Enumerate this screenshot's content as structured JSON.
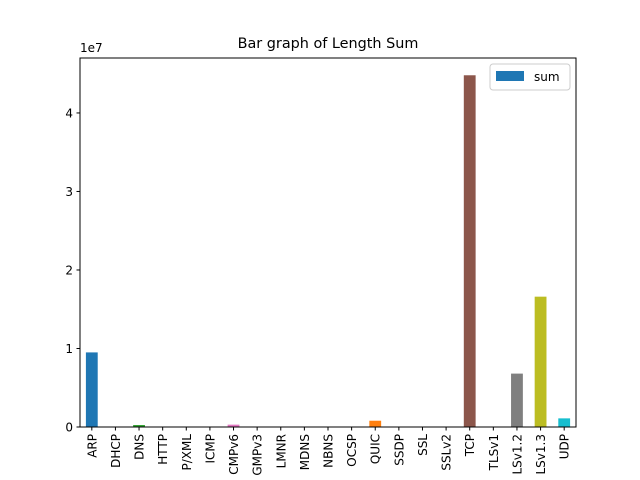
{
  "chart_data": {
    "type": "bar",
    "title": "Bar graph of Length Sum",
    "xlabel": "",
    "ylabel": "",
    "y_multiplier_label": "1e7",
    "categories": [
      "ARP",
      "DHCP",
      "DNS",
      "HTTP",
      "P/XML",
      "ICMP",
      "CMPv6",
      "GMPv3",
      "LMNR",
      "MDNS",
      "NBNS",
      "OCSP",
      "QUIC",
      "SSDP",
      "SSL",
      "SSLv2",
      "TCP",
      "TLSv1",
      "LSv1.2",
      "LSv1.3",
      "UDP"
    ],
    "series": [
      {
        "name": "sum",
        "values": [
          9500000,
          50000,
          250000,
          60000,
          30000,
          40000,
          300000,
          20000,
          20000,
          60000,
          20000,
          30000,
          800000,
          30000,
          40000,
          20000,
          44800000,
          30000,
          6800000,
          16600000,
          1100000
        ]
      }
    ],
    "bar_colors": [
      "#1f77b4",
      "#ff7f0e",
      "#2ca02c",
      "#d62728",
      "#9467bd",
      "#8c564b",
      "#e377c2",
      "#7f7f7f",
      "#bcbd22",
      "#17becf",
      "#1f77b4",
      "#ff7f0e",
      "#ff7f0e",
      "#2ca02c",
      "#d62728",
      "#9467bd",
      "#8c564b",
      "#e377c2",
      "#7f7f7f",
      "#bcbd22",
      "#17becf"
    ],
    "legend_swatch_color": "#1f77b4",
    "ylim": [
      0,
      47000000
    ],
    "y_ticks": [
      0,
      10000000,
      20000000,
      30000000,
      40000000
    ],
    "y_tick_labels": [
      "0",
      "1",
      "2",
      "3",
      "4"
    ],
    "legend_position": "top-right",
    "grid": false
  }
}
